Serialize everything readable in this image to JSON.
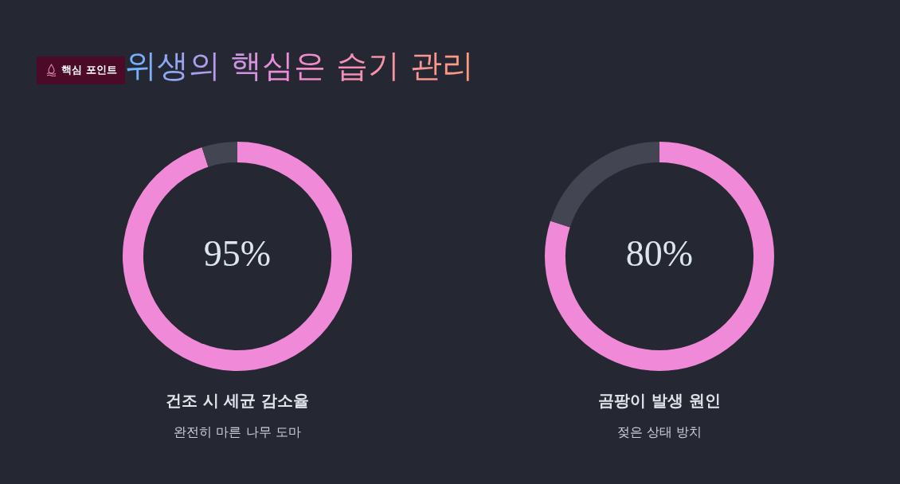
{
  "chart_data": [
    {
      "type": "other",
      "title": "위생의 핵심은 습기 관리",
      "annotations": [
        "핵심 포인트"
      ]
    },
    {
      "type": "donut",
      "title": "건조 시 세균 감소율",
      "subtitle": "완전히 마른 나무 도마",
      "categories": [
        null,
        null
      ],
      "values": [
        95,
        5
      ],
      "colors": [
        "#f08ad8",
        "#434552"
      ],
      "value_labels": [
        "95%",
        null
      ],
      "legend": false
    },
    {
      "type": "donut",
      "title": "곰팡이 발생 원인",
      "subtitle": "젖은 상태 방치",
      "categories": [
        null,
        null
      ],
      "values": [
        80,
        20
      ],
      "colors": [
        "#f08ad8",
        "#434552"
      ],
      "value_labels": [
        "80%",
        null
      ],
      "legend": false
    }
  ]
}
